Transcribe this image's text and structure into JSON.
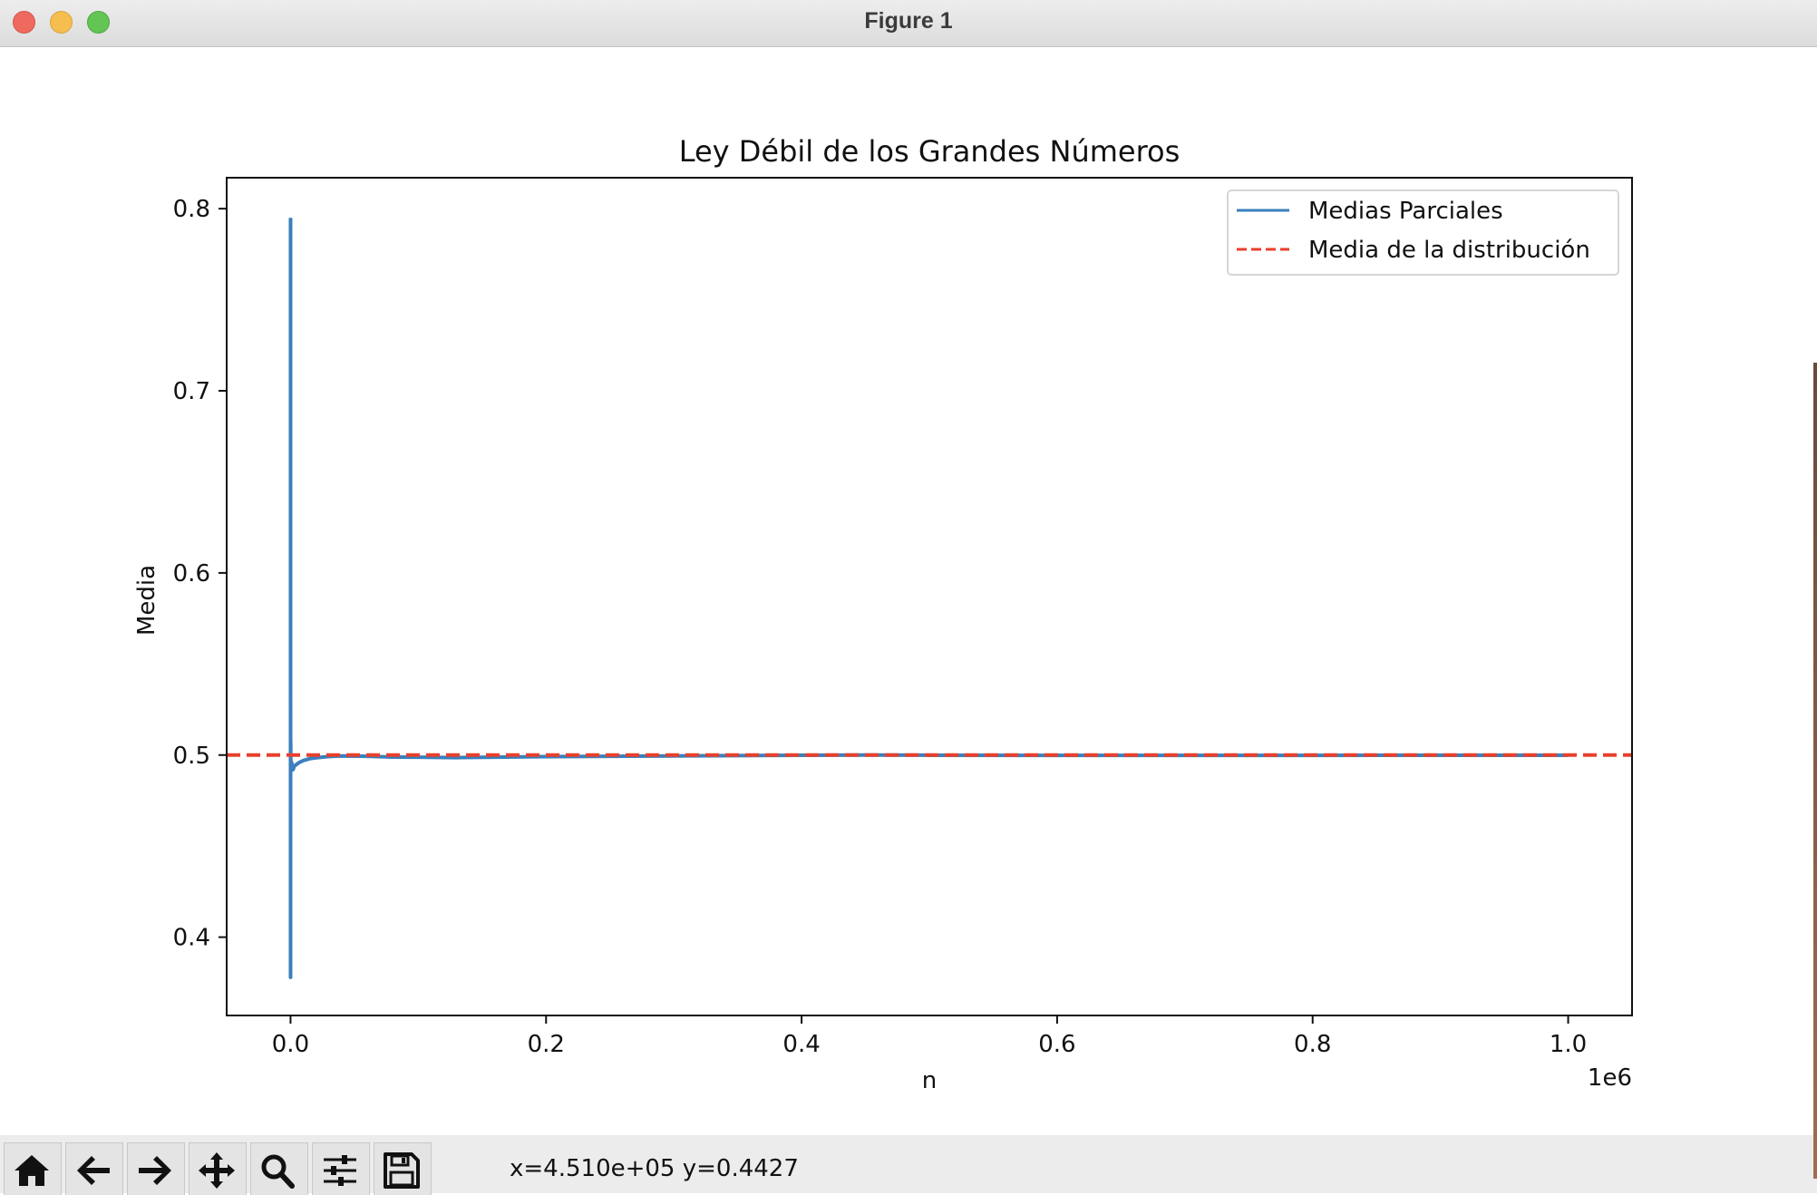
{
  "window": {
    "title": "Figure 1"
  },
  "chart_data": {
    "type": "line",
    "title": "Ley Débil de los Grandes Números",
    "xlabel": "n",
    "ylabel": "Media",
    "x_offset_text": "1e6",
    "xlim": [
      -50000,
      1050000
    ],
    "ylim": [
      0.357,
      0.817
    ],
    "xticks": [
      0,
      200000,
      400000,
      600000,
      800000,
      1000000
    ],
    "xtick_labels": [
      "0.0",
      "0.2",
      "0.4",
      "0.6",
      "0.8",
      "1.0"
    ],
    "yticks": [
      0.4,
      0.5,
      0.6,
      0.7,
      0.8
    ],
    "ytick_labels": [
      "0.4",
      "0.5",
      "0.6",
      "0.7",
      "0.8"
    ],
    "legend_position": "top-right",
    "series": [
      {
        "name": "Medias Parciales",
        "color": "#3b7fbd",
        "style": "solid",
        "x": [
          1,
          2,
          3,
          4,
          6,
          8,
          10,
          15,
          20,
          30,
          50,
          80,
          120,
          200,
          350,
          500,
          800,
          1200,
          2000,
          3000,
          5000,
          7000,
          10000,
          15000,
          20000,
          30000,
          40000,
          60000,
          80000,
          100000,
          130000,
          160000,
          200000,
          250000,
          300000,
          350000,
          400000,
          450000,
          500000,
          600000,
          700000,
          800000,
          900000,
          1000000
        ],
        "y": [
          0.795,
          0.378,
          0.67,
          0.42,
          0.61,
          0.46,
          0.56,
          0.47,
          0.53,
          0.48,
          0.51,
          0.49,
          0.507,
          0.493,
          0.495,
          0.492,
          0.496,
          0.494,
          0.492,
          0.494,
          0.495,
          0.496,
          0.497,
          0.498,
          0.4985,
          0.4992,
          0.4995,
          0.4993,
          0.4989,
          0.4988,
          0.4986,
          0.4988,
          0.4991,
          0.4993,
          0.4995,
          0.4997,
          0.4999,
          0.5,
          0.4999,
          0.4998,
          0.4998,
          0.4998,
          0.4999,
          0.4999
        ]
      },
      {
        "name": "Media de la distribución",
        "color": "#e8402c",
        "style": "dashed",
        "y_constant": 0.5
      }
    ]
  },
  "toolbar": {
    "buttons": [
      {
        "name": "home-icon"
      },
      {
        "name": "back-arrow-icon"
      },
      {
        "name": "forward-arrow-icon"
      },
      {
        "name": "pan-move-icon"
      },
      {
        "name": "zoom-icon"
      },
      {
        "name": "configure-subplots-icon"
      },
      {
        "name": "save-icon"
      }
    ],
    "coordinates": "x=4.510e+05 y=0.4427"
  }
}
